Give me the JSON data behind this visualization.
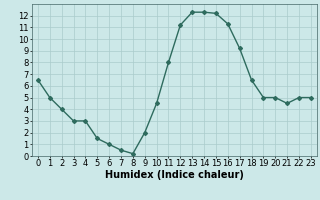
{
  "x": [
    0,
    1,
    2,
    3,
    4,
    5,
    6,
    7,
    8,
    9,
    10,
    11,
    12,
    13,
    14,
    15,
    16,
    17,
    18,
    19,
    20,
    21,
    22,
    23
  ],
  "y": [
    6.5,
    5.0,
    4.0,
    3.0,
    3.0,
    1.5,
    1.0,
    0.5,
    0.2,
    2.0,
    4.5,
    8.0,
    11.2,
    12.3,
    12.3,
    12.2,
    11.3,
    9.2,
    6.5,
    5.0,
    5.0,
    4.5,
    5.0,
    5.0
  ],
  "xlabel": "Humidex (Indice chaleur)",
  "ylim": [
    0,
    13
  ],
  "xlim": [
    -0.5,
    23.5
  ],
  "yticks": [
    0,
    1,
    2,
    3,
    4,
    5,
    6,
    7,
    8,
    9,
    10,
    11,
    12
  ],
  "xticks": [
    0,
    1,
    2,
    3,
    4,
    5,
    6,
    7,
    8,
    9,
    10,
    11,
    12,
    13,
    14,
    15,
    16,
    17,
    18,
    19,
    20,
    21,
    22,
    23
  ],
  "line_color": "#2e6b5e",
  "marker": "D",
  "marker_size": 2.0,
  "bg_color": "#cce8e8",
  "grid_color": "#aacccc",
  "xlabel_fontsize": 7,
  "tick_fontsize": 6,
  "line_width": 1.0
}
